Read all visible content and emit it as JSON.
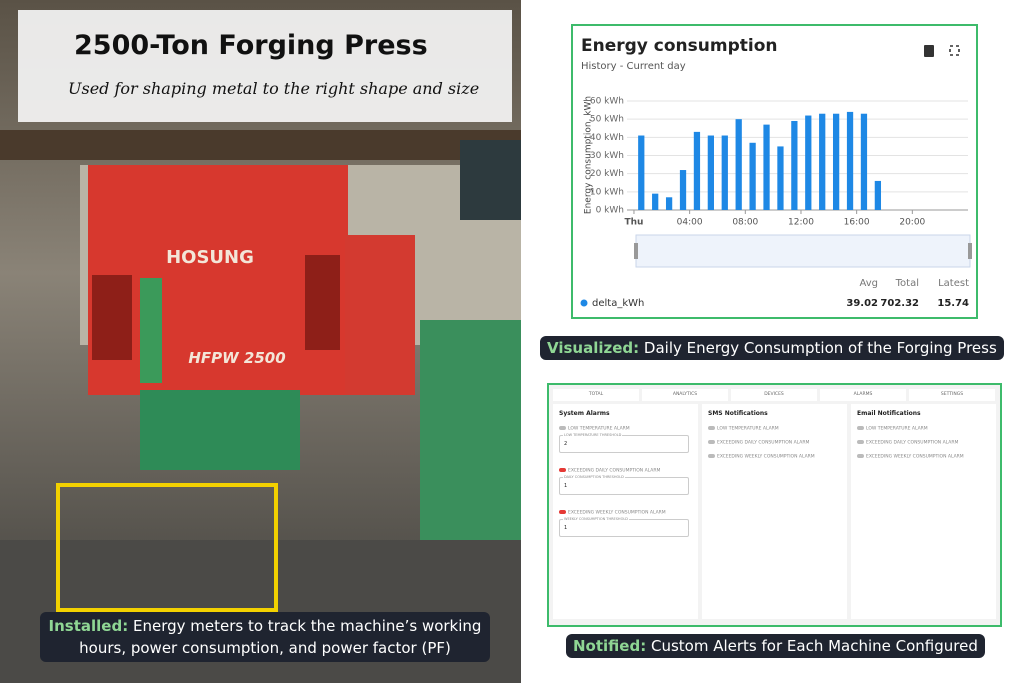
{
  "photo_card": {
    "title": "2500-Ton Forging Press",
    "subtitle": "Used for shaping metal to the right shape and size",
    "machine_brand": "HOSUNG",
    "machine_model": "HFPW 2500",
    "caption_lead": "Installed:",
    "caption_text": "Energy meters to track the machine’s working hours, power consumption, and power factor (PF)"
  },
  "chart_data": {
    "type": "bar",
    "title": "Energy consumption",
    "subtitle": "History - Current day",
    "y_label": "Energy consumption, kWh",
    "x": [
      0,
      1,
      2,
      3,
      4,
      5,
      6,
      7,
      8,
      9,
      10,
      11,
      12,
      13,
      14,
      15,
      16,
      17
    ],
    "series": [
      {
        "name": "delta_kWh",
        "color": "#1e88e5",
        "values": [
          41,
          9,
          7,
          22,
          43,
          41,
          41,
          50,
          37,
          47,
          35,
          49,
          52,
          53,
          53,
          54,
          53,
          16
        ]
      }
    ],
    "xlim": [
      -0.5,
      24
    ],
    "xticks": [
      {
        "value": 0,
        "label": "Thu"
      },
      {
        "value": 4,
        "label": "04:00"
      },
      {
        "value": 8,
        "label": "08:00"
      },
      {
        "value": 12,
        "label": "12:00"
      },
      {
        "value": 16,
        "label": "16:00"
      },
      {
        "value": 20,
        "label": "20:00"
      }
    ],
    "ylim": [
      0,
      60
    ],
    "yticks": [
      {
        "value": 0,
        "label": "0 kWh"
      },
      {
        "value": 10,
        "label": "10 kWh"
      },
      {
        "value": 20,
        "label": "20 kWh"
      },
      {
        "value": 30,
        "label": "30 kWh"
      },
      {
        "value": 40,
        "label": "40 kWh"
      },
      {
        "value": 50,
        "label": "50 kWh"
      },
      {
        "value": 60,
        "label": "60 kWh"
      }
    ],
    "grid": true,
    "stats_headers": [
      "Avg",
      "Total",
      "Latest"
    ],
    "stats_values": [
      39.02,
      702.32,
      15.74
    ]
  },
  "chart_caption": {
    "lead": "Visualized:",
    "text": "Daily Energy Consumption of the Forging Press"
  },
  "alarms_panel": {
    "tabs": [
      "TOTAL",
      "ANALYTICS",
      "DEVICES",
      "ALARMS",
      "SETTINGS"
    ],
    "columns": [
      {
        "title": "System Alarms",
        "items": [
          {
            "label": "LOW TEMPERATURE ALARM",
            "field": "LOW TEMPERATURE THRESHOLD",
            "value": 2
          },
          {
            "label": "EXCEEDING DAILY CONSUMPTION ALARM",
            "field": "DAILY CONSUMPTION THRESHOLD",
            "value": 1
          },
          {
            "label": "EXCEEDING WEEKLY CONSUMPTION ALARM",
            "field": "WEEKLY CONSUMPTION THRESHOLD",
            "value": 1
          }
        ]
      },
      {
        "title": "SMS Notifications",
        "items": [
          {
            "label": "LOW TEMPERATURE ALARM"
          },
          {
            "label": "EXCEEDING DAILY CONSUMPTION ALARM"
          },
          {
            "label": "EXCEEDING WEEKLY CONSUMPTION ALARM"
          }
        ]
      },
      {
        "title": "Email Notifications",
        "items": [
          {
            "label": "LOW TEMPERATURE ALARM"
          },
          {
            "label": "EXCEEDING DAILY CONSUMPTION ALARM"
          },
          {
            "label": "EXCEEDING WEEKLY CONSUMPTION ALARM"
          }
        ]
      }
    ]
  },
  "alarms_caption": {
    "lead": "Notified:",
    "text": "Custom Alerts for Each Machine Configured"
  }
}
